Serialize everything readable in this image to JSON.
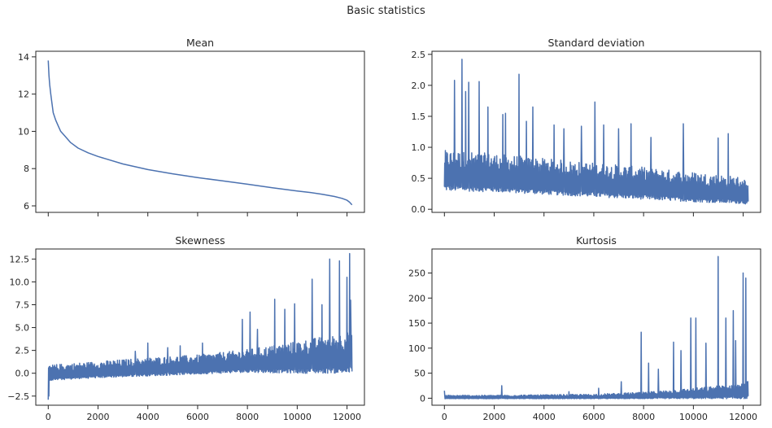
{
  "figure": {
    "suptitle": "Basic statistics"
  },
  "chart_data": [
    {
      "type": "line",
      "title": "Mean",
      "xlim": [
        -500,
        12700
      ],
      "ylim": [
        5.65,
        14.3
      ],
      "x_ticks": [
        0,
        2000,
        4000,
        6000,
        8000,
        10000,
        12000
      ],
      "x_tick_labels_visible": false,
      "y_ticks": [
        6,
        8,
        10,
        12,
        14
      ],
      "y_tick_labels": [
        "6",
        "8",
        "10",
        "12",
        "14"
      ],
      "series": [
        {
          "color": "#4c72b0",
          "x": [
            0,
            30,
            60,
            100,
            150,
            200,
            300,
            400,
            500,
            700,
            900,
            1200,
            1600,
            2000,
            3000,
            4000,
            5000,
            6000,
            7000,
            8000,
            9000,
            10000,
            10500,
            11000,
            11500,
            11800,
            12000,
            12100,
            12200
          ],
          "y": [
            13.8,
            13.0,
            12.5,
            12.0,
            11.5,
            11.0,
            10.6,
            10.3,
            10.0,
            9.7,
            9.4,
            9.1,
            8.85,
            8.65,
            8.25,
            7.95,
            7.72,
            7.52,
            7.34,
            7.16,
            6.97,
            6.8,
            6.72,
            6.62,
            6.5,
            6.4,
            6.3,
            6.2,
            6.05
          ]
        }
      ]
    },
    {
      "type": "line",
      "title": "Standard deviation",
      "xlim": [
        -500,
        12700
      ],
      "ylim": [
        -0.05,
        2.55
      ],
      "x_ticks": [
        0,
        2000,
        4000,
        6000,
        8000,
        10000,
        12000
      ],
      "x_tick_labels_visible": false,
      "y_ticks": [
        0.0,
        0.5,
        1.0,
        1.5,
        2.0,
        2.5
      ],
      "y_tick_labels": [
        "0.0",
        "0.5",
        "1.0",
        "1.5",
        "2.0",
        "2.5"
      ],
      "series": [
        {
          "color": "#4c72b0",
          "style": "dense noisy band",
          "band_x": [
            0,
            2000,
            4000,
            6000,
            8000,
            10000,
            12000,
            12200
          ],
          "band_low": [
            0.3,
            0.28,
            0.24,
            0.2,
            0.16,
            0.12,
            0.09,
            0.08
          ],
          "band_high": [
            0.95,
            0.9,
            0.82,
            0.75,
            0.68,
            0.6,
            0.52,
            0.4
          ],
          "spikes_x": [
            700,
            400,
            850,
            980,
            1400,
            1750,
            2350,
            2450,
            3000,
            3300,
            3550,
            4400,
            4800,
            5500,
            6050,
            6400,
            7000,
            7500,
            8300,
            9600,
            11000,
            11400
          ],
          "spikes_y": [
            2.42,
            2.08,
            1.9,
            2.05,
            2.06,
            1.65,
            1.53,
            1.55,
            2.18,
            1.42,
            1.65,
            1.36,
            1.3,
            1.34,
            1.73,
            1.36,
            1.3,
            1.38,
            1.16,
            1.38,
            1.15,
            1.22
          ]
        }
      ]
    },
    {
      "type": "line",
      "title": "Skewness",
      "xlim": [
        -500,
        12700
      ],
      "ylim": [
        -3.5,
        13.6
      ],
      "x_ticks": [
        0,
        2000,
        4000,
        6000,
        8000,
        10000,
        12000
      ],
      "x_tick_labels": [
        "0",
        "2000",
        "4000",
        "6000",
        "8000",
        "10000",
        "12000"
      ],
      "y_ticks": [
        -2.5,
        0.0,
        2.5,
        5.0,
        7.5,
        10.0,
        12.5
      ],
      "y_tick_labels": [
        "−2.5",
        "0.0",
        "2.5",
        "5.0",
        "7.5",
        "10.0",
        "12.5"
      ],
      "series": [
        {
          "color": "#4c72b0",
          "style": "dense noisy band",
          "band_x": [
            0,
            2000,
            4000,
            6000,
            8000,
            10000,
            12000,
            12200
          ],
          "band_low": [
            -0.8,
            -0.5,
            -0.3,
            -0.1,
            0.1,
            0.0,
            0.0,
            0.0
          ],
          "band_high": [
            0.9,
            1.3,
            1.7,
            2.0,
            2.6,
            3.5,
            4.5,
            5.0
          ],
          "spikes_x": [
            0,
            30,
            3500,
            4000,
            4800,
            5300,
            6200,
            7800,
            8100,
            8400,
            9100,
            9500,
            9900,
            10600,
            11000,
            11300,
            11700,
            12000,
            12100,
            12150
          ],
          "spikes_y": [
            -2.9,
            -2.5,
            2.4,
            3.3,
            2.8,
            3.0,
            3.3,
            5.9,
            6.7,
            4.8,
            8.1,
            7.0,
            7.6,
            10.3,
            7.5,
            12.5,
            12.3,
            10.5,
            13.1,
            8.0
          ]
        }
      ]
    },
    {
      "type": "line",
      "title": "Kurtosis",
      "xlim": [
        -500,
        12700
      ],
      "ylim": [
        -14,
        298
      ],
      "x_ticks": [
        0,
        2000,
        4000,
        6000,
        8000,
        10000,
        12000
      ],
      "x_tick_labels": [
        "0",
        "2000",
        "4000",
        "6000",
        "8000",
        "10000",
        "12000"
      ],
      "y_ticks": [
        0,
        50,
        100,
        150,
        200,
        250
      ],
      "y_tick_labels": [
        "0",
        "50",
        "100",
        "150",
        "200",
        "250"
      ],
      "series": [
        {
          "color": "#4c72b0",
          "style": "dense noisy band",
          "band_x": [
            0,
            2000,
            4000,
            6000,
            8000,
            10000,
            12000,
            12200
          ],
          "band_low": [
            -1,
            -1,
            -1,
            -1,
            -1,
            -1,
            -1,
            -1
          ],
          "band_high": [
            6,
            6,
            7,
            8,
            12,
            20,
            30,
            35
          ],
          "spikes_x": [
            0,
            2300,
            5000,
            6200,
            7100,
            7900,
            8200,
            8600,
            9200,
            9500,
            9900,
            10100,
            10500,
            11000,
            11300,
            11600,
            11700,
            12000,
            12100
          ],
          "spikes_y": [
            15,
            25,
            13,
            20,
            33,
            132,
            70,
            58,
            112,
            95,
            160,
            160,
            110,
            283,
            160,
            175,
            115,
            250,
            240
          ]
        }
      ]
    }
  ]
}
